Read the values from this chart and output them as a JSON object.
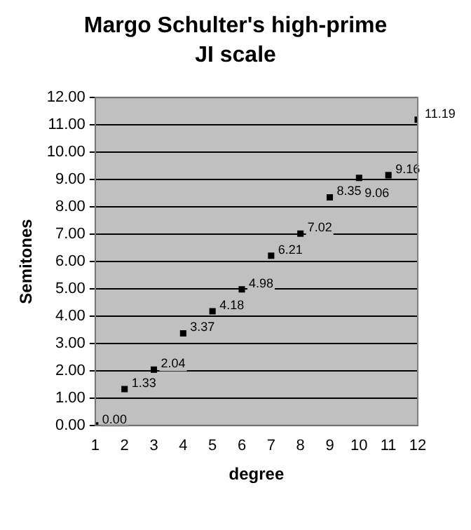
{
  "chart_data": {
    "type": "scatter",
    "title": "Margo Schulter's high-prime JI scale",
    "xlabel": "degree",
    "ylabel": "Semitones",
    "x": [
      1,
      2,
      3,
      4,
      5,
      6,
      7,
      8,
      9,
      10,
      11,
      12
    ],
    "series": [
      {
        "color": "#000000",
        "values": [
          0.0,
          1.33,
          2.04,
          3.37,
          4.18,
          4.98,
          6.21,
          7.02,
          8.35,
          9.06,
          9.16,
          11.19
        ],
        "value_labels": [
          "0.00",
          "1.33",
          "2.04",
          "3.37",
          "4.18",
          "4.98",
          "6.21",
          "7.02",
          "8.35",
          "9.06",
          "9.16",
          "11.19"
        ]
      }
    ],
    "xlim": [
      1,
      12
    ],
    "xticks": [
      1,
      2,
      3,
      4,
      5,
      6,
      7,
      8,
      9,
      10,
      11,
      12
    ],
    "ylim": [
      0,
      12
    ],
    "yticks": [
      {
        "value": 0,
        "label": "0.00"
      },
      {
        "value": 1,
        "label": "1.00"
      },
      {
        "value": 2,
        "label": "2.00"
      },
      {
        "value": 3,
        "label": "3.00"
      },
      {
        "value": 4,
        "label": "4.00"
      },
      {
        "value": 5,
        "label": "5.00"
      },
      {
        "value": 6,
        "label": "6.00"
      },
      {
        "value": 7,
        "label": "7.00"
      },
      {
        "value": 8,
        "label": "8.00"
      },
      {
        "value": 9,
        "label": "9.00"
      },
      {
        "value": 10,
        "label": "10.00"
      },
      {
        "value": 11,
        "label": "11.00"
      },
      {
        "value": 12,
        "label": "12.00"
      }
    ],
    "grid": "y",
    "legend": false,
    "marker": "square"
  }
}
